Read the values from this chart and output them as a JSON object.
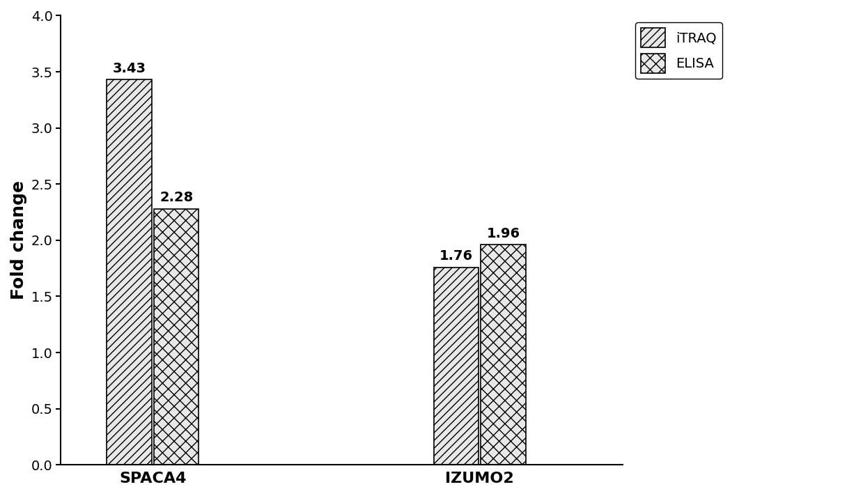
{
  "categories": [
    "SPACA4",
    "IZUMO2"
  ],
  "itraq_values": [
    3.43,
    1.76
  ],
  "elisa_values": [
    2.28,
    1.96
  ],
  "ylabel": "Fold change",
  "ylim": [
    0,
    4
  ],
  "yticks": [
    0,
    0.5,
    1,
    1.5,
    2,
    2.5,
    3,
    3.5,
    4
  ],
  "legend_labels": [
    "iTRAQ",
    "ELISA"
  ],
  "bar_width": 0.22,
  "itraq_hatch": "///",
  "elisa_hatch": "xx",
  "bar_edge_color": "#000000",
  "bar_face_color": "#e8e8e8",
  "label_fontsize": 16,
  "tick_fontsize": 14,
  "annotation_fontsize": 14,
  "legend_fontsize": 14,
  "ylabel_fontsize": 18
}
